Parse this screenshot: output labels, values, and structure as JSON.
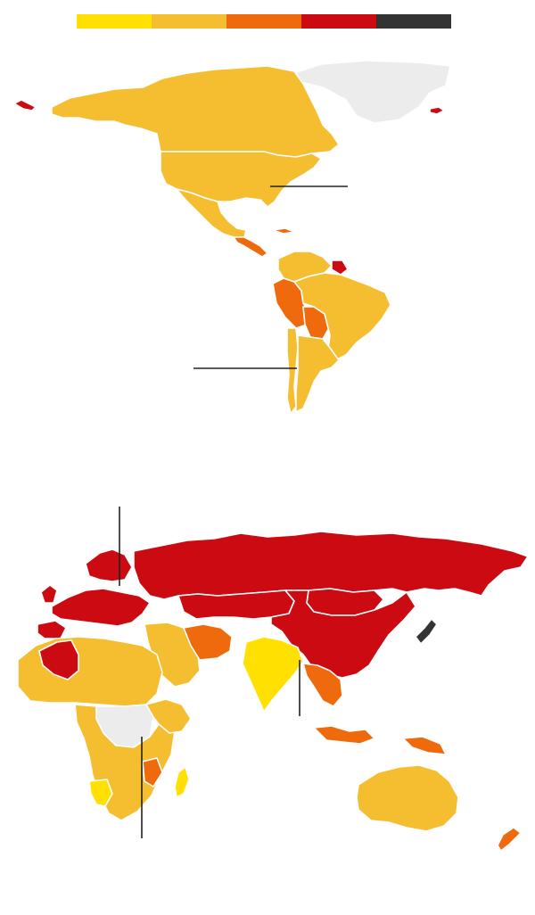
{
  "legend": {
    "colors": [
      "#ffe000",
      "#f5bd30",
      "#ee6a0c",
      "#cc0a12",
      "#333333"
    ]
  },
  "palette": {
    "lowest": "#ffe000",
    "low": "#f5bd30",
    "medium": "#ee6a0c",
    "high": "#cc0a12",
    "highest": "#333333",
    "no_data": "#ececec"
  },
  "map_regions": {
    "americas": {
      "greenland": "no_data",
      "alaska": "high",
      "canada": "low",
      "usa": "low",
      "mexico": "low",
      "central_america": "medium",
      "colombia": "low",
      "venezuela": "low",
      "guianas": "high",
      "peru": "medium",
      "bolivia": "medium",
      "brazil": "low",
      "chile": "low",
      "argentina": "low"
    },
    "eurasia_africa_oceania": {
      "russia": "high",
      "china": "high",
      "central_asia": "high",
      "mongolia": "high",
      "scandinavia": "high",
      "western_europe": "high",
      "japan": "highest",
      "middle_east": "low",
      "iran": "medium",
      "india": "lowest",
      "southeast_asia": "medium",
      "indonesia": "medium",
      "north_africa": "low",
      "algeria": "high",
      "sub_saharan_africa": "low",
      "central_africa": "no_data",
      "namibia": "lowest",
      "madagascar": "lowest",
      "australia": "low",
      "new_zealand": "medium"
    }
  }
}
